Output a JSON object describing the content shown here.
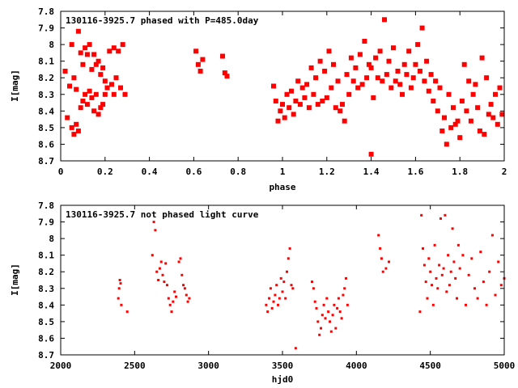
{
  "chart_data": [
    {
      "type": "scatter",
      "title": "130116-3925.7 phased with P=485.0day",
      "xlabel": "phase",
      "ylabel": "I[mag]",
      "xlim": [
        0,
        2
      ],
      "ylim": [
        7.8,
        8.7
      ],
      "y_inverted": true,
      "marker": "filled-square",
      "color": "#ff0000",
      "grid": false,
      "x_ticks": [
        {
          "value": 0,
          "label": "0"
        },
        {
          "value": 0.2,
          "label": "0.2"
        },
        {
          "value": 0.4,
          "label": "0.4"
        },
        {
          "value": 0.6,
          "label": "0.6"
        },
        {
          "value": 0.8,
          "label": "0.8"
        },
        {
          "value": 1,
          "label": "1"
        },
        {
          "value": 1.2,
          "label": "1.2"
        },
        {
          "value": 1.4,
          "label": "1.4"
        },
        {
          "value": 1.6,
          "label": "1.6"
        },
        {
          "value": 1.8,
          "label": "1.8"
        },
        {
          "value": 2,
          "label": "2"
        }
      ],
      "y_ticks": [
        {
          "value": 7.8,
          "label": "7.8"
        },
        {
          "value": 7.9,
          "label": "7.9"
        },
        {
          "value": 8.0,
          "label": "8"
        },
        {
          "value": 8.1,
          "label": "8.1"
        },
        {
          "value": 8.2,
          "label": "8.2"
        },
        {
          "value": 8.3,
          "label": "8.3"
        },
        {
          "value": 8.4,
          "label": "8.4"
        },
        {
          "value": 8.5,
          "label": "8.5"
        },
        {
          "value": 8.6,
          "label": "8.6"
        },
        {
          "value": 8.7,
          "label": "8.7"
        }
      ],
      "series": [
        {
          "x": [
            0.02,
            0.03,
            0.04,
            0.05,
            0.05,
            0.06,
            0.06,
            0.07,
            0.07,
            0.08,
            0.08,
            0.09,
            0.09,
            0.1,
            0.1,
            0.11,
            0.11,
            0.12,
            0.12,
            0.13,
            0.13,
            0.14,
            0.14,
            0.15,
            0.15,
            0.16,
            0.16,
            0.17,
            0.17,
            0.18,
            0.18,
            0.19,
            0.19,
            0.2,
            0.2,
            0.21,
            0.22,
            0.23,
            0.24,
            0.24,
            0.25,
            0.26,
            0.27,
            0.28,
            0.29,
            0.61,
            0.62,
            0.63,
            0.64,
            0.73,
            0.74,
            0.75,
            0.96,
            0.97,
            0.98,
            0.99,
            1.0,
            1.01,
            1.02,
            1.03,
            1.04,
            1.05,
            1.06,
            1.07,
            1.08,
            1.09,
            1.1,
            1.11,
            1.12,
            1.13,
            1.14,
            1.15,
            1.16,
            1.17,
            1.18,
            1.19,
            1.2,
            1.21,
            1.22,
            1.23,
            1.24,
            1.25,
            1.26,
            1.27,
            1.28,
            1.29,
            1.3,
            1.31,
            1.32,
            1.33,
            1.34,
            1.35,
            1.36,
            1.37,
            1.38,
            1.39,
            1.4,
            1.4,
            1.41,
            1.42,
            1.43,
            1.44,
            1.45,
            1.46,
            1.47,
            1.48,
            1.49,
            1.5,
            1.51,
            1.52,
            1.53,
            1.54,
            1.55,
            1.56,
            1.57,
            1.58,
            1.59,
            1.6,
            1.61,
            1.62,
            1.63,
            1.64,
            1.65,
            1.66,
            1.67,
            1.68,
            1.69,
            1.7,
            1.71,
            1.72,
            1.73,
            1.74,
            1.75,
            1.76,
            1.77,
            1.78,
            1.79,
            1.8,
            1.81,
            1.82,
            1.83,
            1.84,
            1.85,
            1.86,
            1.87,
            1.88,
            1.89,
            1.9,
            1.91,
            1.92,
            1.93,
            1.94,
            1.95,
            1.96,
            1.97,
            1.98,
            1.99
          ],
          "y": [
            8.16,
            8.44,
            8.25,
            8.5,
            8.0,
            8.54,
            8.2,
            8.48,
            8.27,
            8.52,
            7.92,
            8.38,
            8.05,
            8.34,
            8.12,
            8.3,
            8.02,
            8.36,
            8.06,
            8.28,
            8.0,
            8.32,
            8.15,
            8.4,
            8.06,
            8.3,
            8.12,
            8.42,
            8.1,
            8.38,
            8.18,
            8.36,
            8.14,
            8.3,
            8.22,
            8.26,
            8.04,
            8.24,
            8.02,
            8.3,
            8.2,
            8.04,
            8.26,
            8.0,
            8.3,
            8.04,
            8.12,
            8.16,
            8.09,
            8.07,
            8.17,
            8.19,
            8.25,
            8.34,
            8.46,
            8.4,
            8.36,
            8.44,
            8.3,
            8.38,
            8.28,
            8.42,
            8.34,
            8.22,
            8.36,
            8.26,
            8.32,
            8.24,
            8.38,
            8.14,
            8.3,
            8.2,
            8.36,
            8.1,
            8.34,
            8.16,
            8.32,
            8.04,
            8.26,
            8.12,
            8.38,
            8.22,
            8.4,
            8.36,
            8.46,
            8.18,
            8.3,
            8.08,
            8.22,
            8.14,
            8.26,
            8.06,
            8.24,
            7.98,
            8.2,
            8.12,
            8.14,
            8.66,
            8.32,
            8.08,
            8.2,
            8.04,
            8.22,
            7.85,
            8.18,
            8.1,
            8.26,
            8.02,
            8.22,
            8.16,
            8.24,
            8.3,
            8.12,
            8.18,
            8.04,
            8.26,
            8.2,
            8.12,
            8.0,
            8.16,
            7.9,
            8.22,
            8.1,
            8.28,
            8.18,
            8.34,
            8.22,
            8.4,
            8.26,
            8.52,
            8.44,
            8.6,
            8.3,
            8.5,
            8.38,
            8.48,
            8.46,
            8.56,
            8.34,
            8.12,
            8.4,
            8.22,
            8.46,
            8.3,
            8.24,
            8.38,
            8.52,
            8.08,
            8.54,
            8.2,
            8.42,
            8.36,
            8.44,
            8.3,
            8.48,
            8.26,
            8.42
          ]
        }
      ]
    },
    {
      "type": "scatter",
      "title": "130116-3925.7 not phased light curve",
      "xlabel": "hjd0",
      "ylabel": "I[mag]",
      "xlim": [
        2000,
        5000
      ],
      "ylim": [
        7.8,
        8.7
      ],
      "y_inverted": true,
      "marker": "small-dot",
      "color": "#ff0000",
      "grid": false,
      "x_ticks": [
        {
          "value": 2000,
          "label": "2000"
        },
        {
          "value": 2500,
          "label": "2500"
        },
        {
          "value": 3000,
          "label": "3000"
        },
        {
          "value": 3500,
          "label": "3500"
        },
        {
          "value": 4000,
          "label": "4000"
        },
        {
          "value": 4500,
          "label": "4500"
        },
        {
          "value": 5000,
          "label": "5000"
        }
      ],
      "y_ticks": [
        {
          "value": 7.8,
          "label": "7.8"
        },
        {
          "value": 7.9,
          "label": "7.9"
        },
        {
          "value": 8.0,
          "label": "8"
        },
        {
          "value": 8.1,
          "label": "8.1"
        },
        {
          "value": 8.2,
          "label": "8.2"
        },
        {
          "value": 8.3,
          "label": "8.3"
        },
        {
          "value": 8.4,
          "label": "8.4"
        },
        {
          "value": 8.5,
          "label": "8.5"
        },
        {
          "value": 8.6,
          "label": "8.6"
        },
        {
          "value": 8.7,
          "label": "8.7"
        }
      ],
      "series": [
        {
          "x": [
            2390,
            2395,
            2400,
            2405,
            2410,
            2450,
            2620,
            2630,
            2640,
            2650,
            2660,
            2670,
            2680,
            2690,
            2700,
            2710,
            2720,
            2730,
            2740,
            2750,
            2760,
            2770,
            2780,
            2800,
            2810,
            2820,
            2830,
            2840,
            2850,
            2860,
            2870,
            3390,
            3400,
            3410,
            3420,
            3430,
            3440,
            3450,
            3460,
            3470,
            3480,
            3490,
            3500,
            3510,
            3520,
            3530,
            3540,
            3550,
            3560,
            3570,
            3590,
            3700,
            3710,
            3720,
            3730,
            3740,
            3750,
            3760,
            3770,
            3780,
            3790,
            3800,
            3810,
            3820,
            3830,
            3840,
            3850,
            3860,
            3870,
            3880,
            3890,
            3900,
            3910,
            3920,
            3930,
            3940,
            4150,
            4160,
            4170,
            4180,
            4200,
            4220,
            4430,
            4440,
            4450,
            4460,
            4470,
            4480,
            4490,
            4500,
            4510,
            4520,
            4530,
            4540,
            4550,
            4560,
            4570,
            4580,
            4590,
            4600,
            4610,
            4620,
            4630,
            4640,
            4650,
            4660,
            4670,
            4680,
            4690,
            4700,
            4720,
            4740,
            4760,
            4780,
            4800,
            4820,
            4840,
            4860,
            4880,
            4900,
            4920,
            4940,
            4960,
            4980,
            5000
          ],
          "y": [
            8.36,
            8.3,
            8.25,
            8.27,
            8.4,
            8.44,
            8.1,
            7.9,
            7.95,
            8.2,
            8.25,
            8.18,
            8.14,
            8.22,
            8.26,
            8.15,
            8.28,
            8.36,
            8.4,
            8.44,
            8.38,
            8.32,
            8.35,
            8.14,
            8.12,
            8.22,
            8.28,
            8.3,
            8.34,
            8.38,
            8.36,
            8.4,
            8.44,
            8.36,
            8.3,
            8.42,
            8.38,
            8.34,
            8.28,
            8.4,
            8.36,
            8.24,
            8.32,
            8.26,
            8.36,
            8.2,
            8.12,
            8.06,
            8.28,
            8.3,
            8.66,
            8.26,
            8.3,
            8.38,
            8.42,
            8.5,
            8.58,
            8.54,
            8.46,
            8.4,
            8.48,
            8.36,
            8.44,
            8.5,
            8.56,
            8.46,
            8.4,
            8.54,
            8.42,
            8.36,
            8.44,
            8.48,
            8.34,
            8.3,
            8.24,
            8.4,
            7.98,
            8.06,
            8.12,
            8.2,
            8.18,
            8.14,
            8.44,
            7.86,
            8.06,
            8.16,
            8.26,
            8.36,
            8.12,
            8.2,
            8.28,
            8.4,
            8.04,
            8.24,
            8.3,
            8.16,
            7.88,
            8.22,
            8.18,
            7.86,
            8.32,
            8.1,
            8.28,
            8.2,
            7.94,
            8.14,
            8.24,
            8.36,
            8.04,
            8.18,
            8.1,
            8.4,
            8.22,
            8.12,
            8.3,
            8.36,
            8.08,
            8.26,
            8.4,
            8.2,
            7.98,
            8.34,
            8.14,
            8.28,
            8.24
          ]
        }
      ]
    }
  ]
}
